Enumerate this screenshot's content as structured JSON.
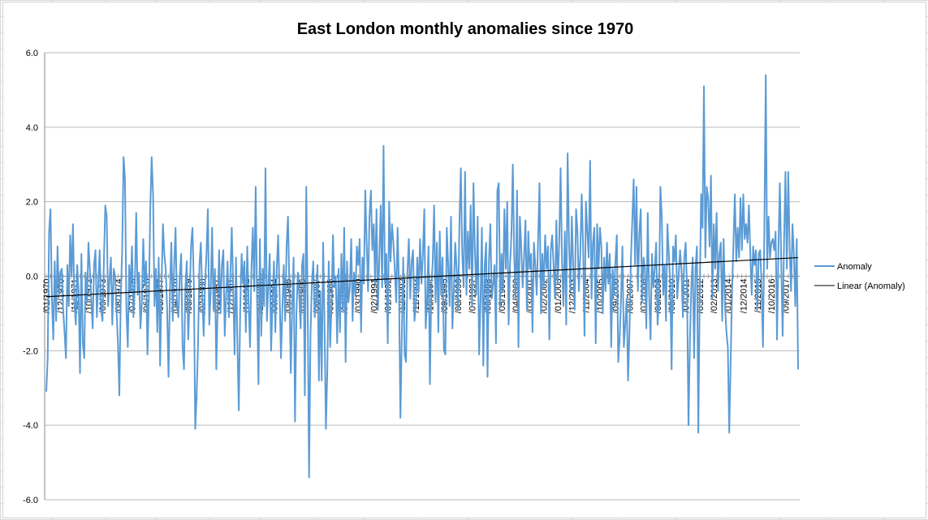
{
  "chart_data": {
    "type": "line",
    "title": "East London monthly anomalies since 1970",
    "xlabel": "",
    "ylabel": "",
    "ylim": [
      -6,
      6
    ],
    "y_ticks": [
      "6.0",
      "4.0",
      "2.0",
      "0.0",
      "-2.0",
      "-4.0",
      "-6.0"
    ],
    "grid": true,
    "legend_position": "right",
    "x_tick_labels": [
      "/01/1970",
      "/12/1970",
      "/11/1971",
      "/10/1972",
      "/09/1973",
      "/08/1974",
      "/07/1975",
      "/06/1976",
      "/05/1977",
      "/04/1978",
      "/03/1979",
      "/02/1980",
      "/01/1981",
      "/12/1981",
      "/11/1982",
      "/10/1983",
      "/09/1984",
      "/08/1985",
      "/07/1986",
      "/06/1987",
      "/05/1988",
      "/04/1989",
      "/03/1990",
      "/02/1991",
      "/01/1992",
      "/12/1992",
      "/11/1993",
      "/10/1994",
      "/09/1995",
      "/08/1996",
      "/07/1997",
      "/06/1998",
      "/05/1999",
      "/04/2000",
      "/03/2001",
      "/02/2002",
      "/01/2003",
      "/12/2003",
      "/11/2004",
      "/10/2005",
      "/09/2006",
      "/08/2007",
      "/07/2008",
      "/06/2009",
      "/05/2010",
      "/04/2011",
      "/03/2012",
      "/02/2013",
      "/01/2014",
      "/12/2014",
      "/11/2015",
      "/10/2016",
      "/09/2017"
    ],
    "series": [
      {
        "name": "Anomaly",
        "color": "#5b9bd5",
        "values": [
          -3.1,
          -2.2,
          1.2,
          1.8,
          -0.6,
          -1.7,
          0.4,
          -1.2,
          0.8,
          -0.5,
          0.1,
          0.2,
          -0.9,
          -1.5,
          -2.2,
          0.3,
          -0.8,
          1.1,
          0.0,
          1.4,
          -0.7,
          -1.3,
          0.3,
          -0.4,
          -2.6,
          0.6,
          -1.8,
          -2.2,
          0.1,
          -0.7,
          0.9,
          0.2,
          -0.6,
          -1.4,
          0.3,
          0.7,
          -1.1,
          -0.2,
          0.7,
          -0.9,
          -1.2,
          0.4,
          1.9,
          1.6,
          -0.8,
          -0.1,
          0.5,
          -1.3,
          0.2,
          0.0,
          -0.9,
          -1.8,
          -3.2,
          -0.6,
          0.7,
          3.2,
          2.6,
          -0.9,
          -1.9,
          0.3,
          -0.4,
          0.8,
          -1.1,
          -0.3,
          1.7,
          -0.5,
          0.1,
          -1.4,
          -0.7,
          1.0,
          -0.2,
          0.4,
          -2.1,
          -0.6,
          1.8,
          3.2,
          2.2,
          -0.8,
          0.2,
          -1.5,
          0.5,
          -2.4,
          -0.3,
          1.4,
          0.6,
          0.2,
          -0.9,
          -2.7,
          -0.4,
          0.9,
          -1.2,
          0.3,
          1.3,
          -0.8,
          -1.1,
          0.0,
          0.6,
          -1.9,
          -2.5,
          -0.3,
          0.4,
          -1.7,
          -0.6,
          0.8,
          1.3,
          -0.2,
          -4.1,
          -3.2,
          -1.8,
          0.3,
          0.9,
          -0.5,
          -1.6,
          -0.2,
          0.6,
          1.8,
          -1.3,
          -0.4,
          1.3,
          -0.9,
          0.2,
          -2.5,
          -0.8,
          0.7,
          -1.0,
          0.3,
          0.7,
          -1.6,
          -0.5,
          0.4,
          -1.1,
          0.0,
          1.3,
          -0.3,
          -2.1,
          0.5,
          -1.8,
          -3.6,
          -0.9,
          0.6,
          -0.2,
          0.4,
          -1.5,
          0.8,
          -0.7,
          -1.9,
          0.2,
          1.3,
          -0.4,
          2.4,
          -0.6,
          -2.9,
          1.0,
          -1.6,
          0.2,
          -0.8,
          2.9,
          -1.2,
          -0.3,
          0.6,
          -2.0,
          -0.7,
          0.4,
          -1.5,
          0.2,
          1.1,
          -0.4,
          -2.2,
          -0.9,
          0.3,
          -1.2,
          0.8,
          1.6,
          -0.3,
          -2.6,
          -0.8,
          0.5,
          -3.9,
          -1.0,
          0.1,
          -0.5,
          -1.4,
          0.3,
          0.6,
          -3.2,
          2.4,
          -0.7,
          -5.4,
          -1.6,
          -0.2,
          0.4,
          -1.1,
          -0.6,
          0.3,
          -2.8,
          -0.4,
          -2.8,
          0.9,
          -1.3,
          -4.1,
          -2.5,
          0.4,
          -1.9,
          -0.8,
          1.1,
          -0.3,
          0.0,
          -1.8,
          0.2,
          -1.5,
          0.6,
          -0.9,
          1.3,
          -2.3,
          0.4,
          -0.7,
          -0.3,
          1.0,
          -1.2,
          0.1,
          -0.5,
          0.8,
          0.3,
          1.0,
          -1.5,
          0.5,
          -0.2,
          2.3,
          0.9,
          -0.4,
          1.6,
          2.3,
          0.7,
          1.4,
          -0.2,
          1.8,
          -0.9,
          0.5,
          1.9,
          -0.3,
          3.5,
          -0.2,
          0.6,
          -1.8,
          2.0,
          0.4,
          1.4,
          0.9,
          0.2,
          -0.7,
          1.3,
          -0.3,
          -3.8,
          -1.6,
          0.5,
          -2.1,
          -2.3,
          0.1,
          1.0,
          -0.6,
          0.4,
          0.7,
          -1.2,
          -0.8,
          0.5,
          -0.4,
          1.0,
          -0.2,
          0.6,
          1.8,
          -1.4,
          -0.6,
          0.8,
          -2.9,
          -0.3,
          0.4,
          1.9,
          -0.7,
          0.9,
          -1.5,
          1.2,
          -0.5,
          0.5,
          -2.0,
          -2.1,
          1.3,
          0.3,
          -0.8,
          1.6,
          -1.4,
          -0.4,
          0.9,
          0.2,
          -0.9,
          1.4,
          2.9,
          0.6,
          -0.3,
          2.8,
          -0.5,
          1.2,
          0.2,
          1.9,
          -0.8,
          2.5,
          0.7,
          -0.5,
          1.6,
          -2.1,
          -0.7,
          1.3,
          -2.4,
          0.3,
          0.9,
          -2.7,
          0.4,
          1.4,
          -0.6,
          -0.2,
          0.3,
          -1.8,
          2.3,
          2.5,
          -0.8,
          0.6,
          -0.4,
          1.8,
          0.2,
          2.0,
          -1.3,
          0.3,
          1.1,
          3.0,
          0.5,
          -0.6,
          2.3,
          -1.9,
          1.6,
          0.8,
          -0.3,
          0.5,
          1.5,
          -0.9,
          1.2,
          0.2,
          0.6,
          -1.5,
          0.9,
          0.3,
          -0.5,
          1.0,
          2.5,
          -1.0,
          0.6,
          -0.3,
          1.1,
          0.2,
          0.8,
          -1.7,
          0.7,
          1.1,
          0.3,
          -0.6,
          1.5,
          -0.2,
          0.9,
          2.9,
          0.4,
          -0.8,
          1.2,
          -1.3,
          3.3,
          0.9,
          -0.4,
          1.6,
          0.2,
          -0.9,
          1.8,
          1.2,
          -0.4,
          0.6,
          2.2,
          0.8,
          -1.6,
          2.0,
          1.2,
          0.5,
          3.1,
          -0.6,
          0.9,
          1.3,
          -1.8,
          1.4,
          0.2,
          1.3,
          0.8,
          -1.0,
          0.5,
          -0.4,
          0.9,
          -0.2,
          0.6,
          -1.9,
          0.2,
          -0.5,
          0.4,
          1.1,
          -2.3,
          -1.7,
          -0.6,
          0.8,
          -1.9,
          -1.3,
          -0.6,
          -2.8,
          -1.5,
          0.4,
          1.5,
          2.6,
          0.3,
          2.4,
          -0.4,
          1.1,
          1.8,
          -0.7,
          0.5,
          0.2,
          -1.4,
          1.7,
          -0.5,
          -1.7,
          0.6,
          -0.3,
          0.2,
          0.9,
          -1.3,
          -0.7,
          2.4,
          1.6,
          -0.5,
          0.3,
          -1.2,
          1.4,
          0.6,
          -0.2,
          -2.5,
          0.8,
          0.4,
          1.1,
          -0.6,
          0.0,
          0.7,
          0.2,
          -1.1,
          0.5,
          0.9,
          -0.4,
          -4.0,
          -1.8,
          -0.3,
          0.5,
          -2.2,
          0.2,
          0.8,
          -4.2,
          -0.5,
          2.2,
          1.3,
          5.1,
          0.5,
          2.4,
          2.1,
          0.8,
          2.7,
          -0.6,
          1.4,
          0.2,
          1.7,
          -0.4,
          0.6,
          0.9,
          -1.2,
          1.0,
          -0.8,
          -1.5,
          -1.9,
          -4.2,
          -2.3,
          -0.4,
          0.9,
          2.2,
          0.4,
          1.3,
          0.5,
          2.1,
          0.7,
          2.2,
          1.0,
          1.4,
          0.9,
          1.9,
          0.6,
          -0.5,
          0.8,
          0.3,
          0.7,
          -0.9,
          0.6,
          0.7,
          -0.2,
          -1.9,
          1.3,
          5.4,
          0.2,
          1.6,
          0.5,
          0.9,
          1.0,
          0.7,
          1.2,
          -1.7,
          0.7,
          2.5,
          0.4,
          -1.6,
          0.9,
          2.8,
          0.2,
          2.8,
          0.7,
          -0.4,
          1.4,
          0.6,
          -0.8,
          1.0,
          -2.5
        ]
      },
      {
        "name": "Linear (Anomaly)",
        "color": "#000000",
        "values": [
          -0.55,
          0.5
        ]
      }
    ]
  }
}
